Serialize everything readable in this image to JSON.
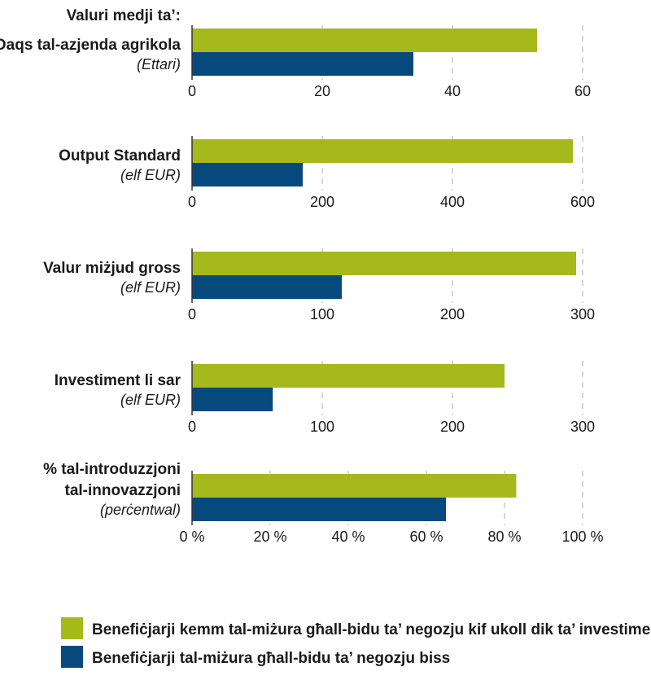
{
  "header": "Valuri medji ta’:",
  "colors": {
    "series_a": "#a5b81c",
    "series_b": "#064a7d",
    "grid": "#bdbdbd",
    "axis": "#333333"
  },
  "legend": [
    {
      "label": "Benefiċjarji kemm tal-miżura għall-bidu ta’ negozju kif ukoll dik ta’ investiment"
    },
    {
      "label": "Benefiċjarji tal-miżura għall-bidu ta’ negozju biss"
    }
  ],
  "chart_data": [
    {
      "type": "bar",
      "orientation": "horizontal",
      "label_lines": [
        "Daqs tal-azjenda agrikola"
      ],
      "unit": "(Ettari)",
      "series": [
        {
          "name": "Benefiċjarji kemm tal-miżura għall-bidu ta’ negozju kif ukoll dik ta’ investiment",
          "value": 53
        },
        {
          "name": "Benefiċjarji tal-miżura għall-bidu ta’ negozju biss",
          "value": 34
        }
      ],
      "xlim": [
        0,
        60
      ],
      "ticks": [
        0,
        20,
        40,
        60
      ],
      "tick_labels": [
        "0",
        "20",
        "40",
        "60"
      ]
    },
    {
      "type": "bar",
      "orientation": "horizontal",
      "label_lines": [
        "Output Standard"
      ],
      "unit": "(elf EUR)",
      "series": [
        {
          "name": "Benefiċjarji kemm tal-miżura għall-bidu ta’ negozju kif ukoll dik ta’ investiment",
          "value": 585
        },
        {
          "name": "Benefiċjarji tal-miżura għall-bidu ta’ negozju biss",
          "value": 170
        }
      ],
      "xlim": [
        0,
        600
      ],
      "ticks": [
        0,
        200,
        400,
        600
      ],
      "tick_labels": [
        "0",
        "200",
        "400",
        "600"
      ]
    },
    {
      "type": "bar",
      "orientation": "horizontal",
      "label_lines": [
        "Valur miżjud gross"
      ],
      "unit": "(elf EUR)",
      "series": [
        {
          "name": "Benefiċjarji kemm tal-miżura għall-bidu ta’ negozju kif ukoll dik ta’ investiment",
          "value": 295
        },
        {
          "name": "Benefiċjarji tal-miżura għall-bidu ta’ negozju biss",
          "value": 115
        }
      ],
      "xlim": [
        0,
        300
      ],
      "ticks": [
        0,
        100,
        200,
        300
      ],
      "tick_labels": [
        "0",
        "100",
        "200",
        "300"
      ]
    },
    {
      "type": "bar",
      "orientation": "horizontal",
      "label_lines": [
        "Investiment li sar"
      ],
      "unit": "(elf EUR)",
      "series": [
        {
          "name": "Benefiċjarji kemm tal-miżura għall-bidu ta’ negozju kif ukoll dik ta’ investiment",
          "value": 240
        },
        {
          "name": "Benefiċjarji tal-miżura għall-bidu ta’ negozju biss",
          "value": 62
        }
      ],
      "xlim": [
        0,
        300
      ],
      "ticks": [
        0,
        100,
        200,
        300
      ],
      "tick_labels": [
        "0",
        "100",
        "200",
        "300"
      ]
    },
    {
      "type": "bar",
      "orientation": "horizontal",
      "label_lines": [
        "% tal-introduzzjoni",
        "tal-innovazzjoni"
      ],
      "unit": "(perċentwal)",
      "series": [
        {
          "name": "Benefiċjarji kemm tal-miżura għall-bidu ta’ negozju kif ukoll dik ta’ investiment",
          "value": 83
        },
        {
          "name": "Benefiċjarji tal-miżura għall-bidu ta’ negozju biss",
          "value": 65
        }
      ],
      "xlim": [
        0,
        100
      ],
      "ticks": [
        0,
        20,
        40,
        60,
        80,
        100
      ],
      "tick_labels": [
        "0 %",
        "20 %",
        "40 %",
        "60 %",
        "80 %",
        "100 %"
      ]
    }
  ]
}
